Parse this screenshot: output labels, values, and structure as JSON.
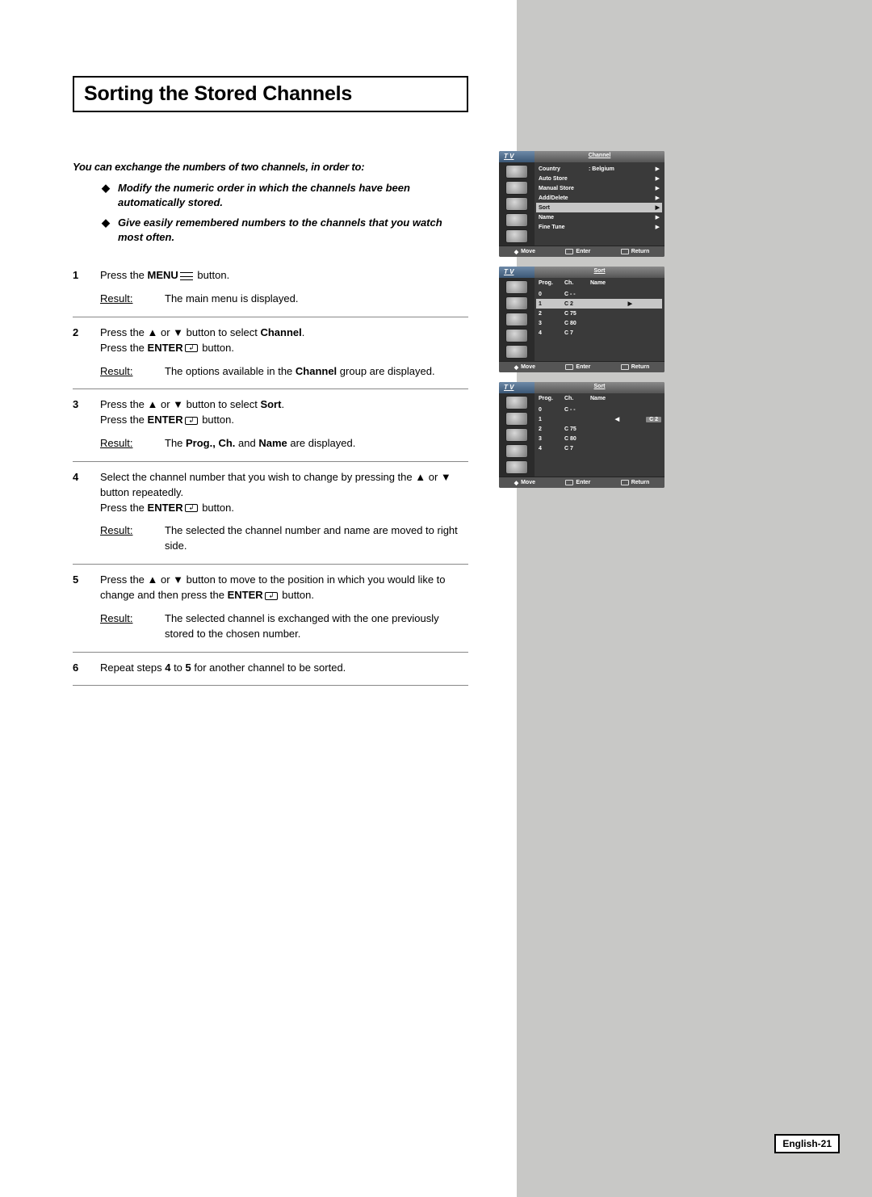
{
  "title": "Sorting the Stored Channels",
  "intro": "You can exchange the numbers of two channels, in order to:",
  "bullets": [
    "Modify the numeric order in which the channels have been automatically stored.",
    "Give easily remembered numbers to the channels that you watch most often."
  ],
  "steps": {
    "1": {
      "body_a": "Press the ",
      "body_b": "MENU",
      "body_c": " button.",
      "result": "The main menu is displayed."
    },
    "2": {
      "body_a": "Press the ▲ or ▼ button to select ",
      "body_b": "Channel",
      "body_c": ".",
      "line2_a": "Press the ",
      "line2_b": "ENTER",
      "line2_c": " button.",
      "result_a": "The options available in the ",
      "result_b": "Channel",
      "result_c": " group are displayed."
    },
    "3": {
      "body_a": "Press the ▲ or ▼ button to select ",
      "body_b": "Sort",
      "body_c": ".",
      "line2_a": "Press the ",
      "line2_b": "ENTER",
      "line2_c": " button.",
      "result_a": "The ",
      "result_b": "Prog., Ch.",
      "result_c": " and ",
      "result_d": "Name",
      "result_e": " are displayed."
    },
    "4": {
      "body": "Select the channel number that you wish to change by pressing the ▲ or ▼ button repeatedly.",
      "line2_a": "Press the ",
      "line2_b": "ENTER",
      "line2_c": " button.",
      "result": "The selected the channel number and name are moved to right side."
    },
    "5": {
      "body_a": "Press the ▲ or ▼ button to move to the position in which you would like to change and then press the ",
      "body_b": "ENTER",
      "body_c": " button.",
      "result": "The selected channel is exchanged with the one previously stored to the chosen number."
    },
    "6": {
      "body_a": "Repeat steps ",
      "body_b": "4",
      "body_c": " to ",
      "body_d": "5",
      "body_e": " for another channel to be sorted."
    }
  },
  "result_label": "Result:",
  "osd": {
    "tv": "T V",
    "channel_title": "Channel",
    "sort_title": "Sort",
    "menu": {
      "country_k": "Country",
      "country_v": ": Belgium",
      "auto_store": "Auto Store",
      "manual_store": "Manual Store",
      "add_delete": "Add/Delete",
      "sort": "Sort",
      "name": "Name",
      "fine_tune": "Fine Tune"
    },
    "cols": {
      "prog": "Prog.",
      "ch": "Ch.",
      "name": "Name"
    },
    "rows": {
      "r0p": "0",
      "r0c": "C - -",
      "r1p": "1",
      "r1c": "C 2",
      "r2p": "2",
      "r2c": "C 75",
      "r3p": "3",
      "r3c": "C 80",
      "r4p": "4",
      "r4c": "C 7"
    },
    "field": "C 2",
    "footer": {
      "move": "Move",
      "enter": "Enter",
      "return": "Return"
    }
  },
  "page_num": "English-21"
}
